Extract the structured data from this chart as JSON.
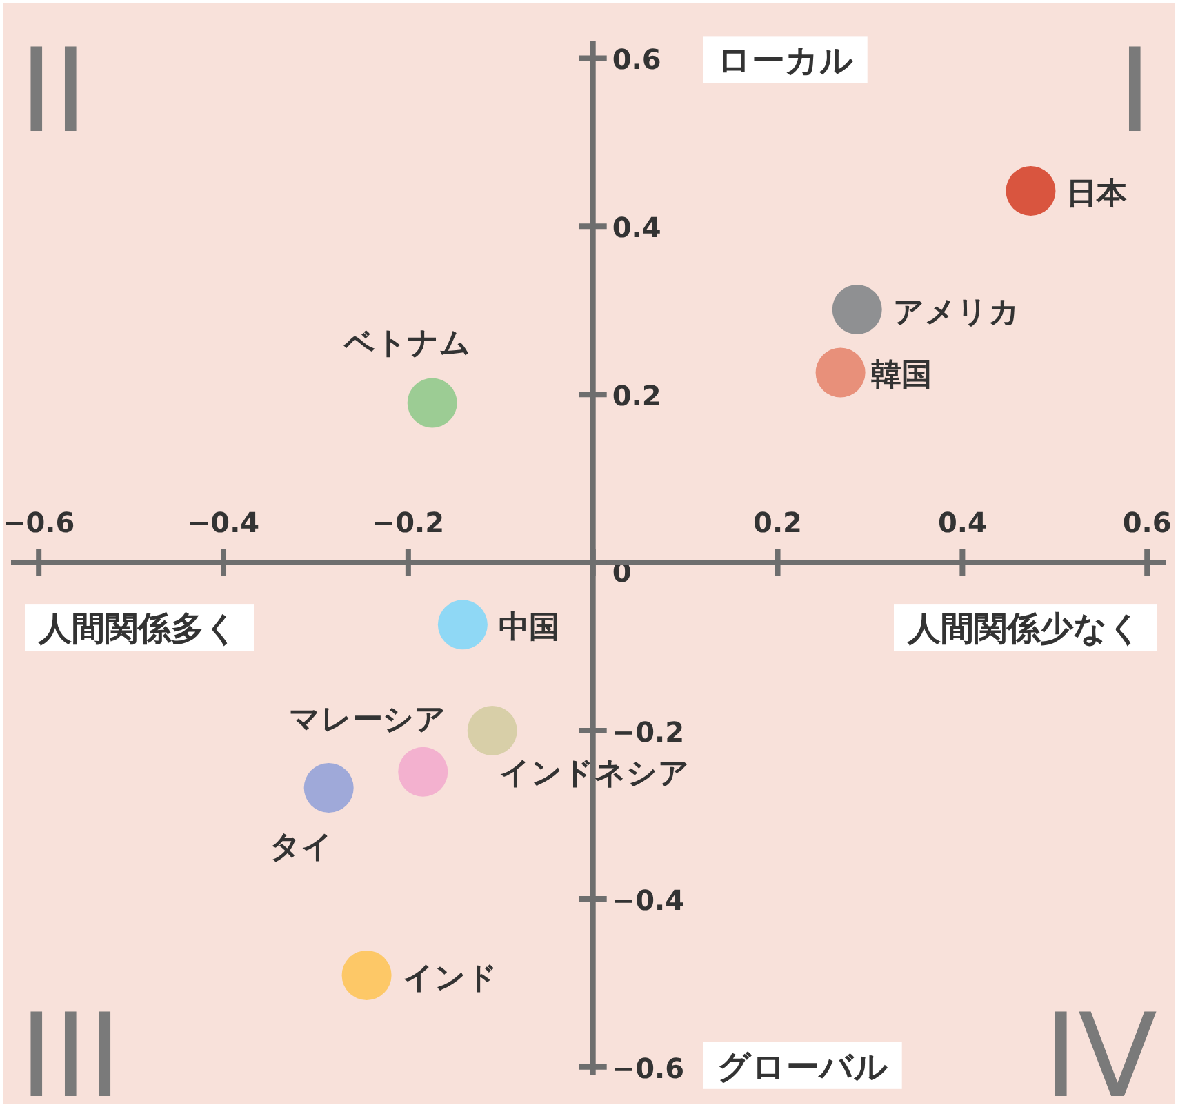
{
  "chart_data": {
    "type": "scatter",
    "xlim": [
      -0.63,
      0.62
    ],
    "ylim": [
      -0.61,
      0.62
    ],
    "xticks": [
      {
        "value": -0.6,
        "label": "−0.6"
      },
      {
        "value": -0.4,
        "label": "−0.4"
      },
      {
        "value": -0.2,
        "label": "−0.2"
      },
      {
        "value": 0,
        "label": null
      },
      0.2,
      0.4,
      0.6
    ],
    "yticks": [
      0.6,
      0.4,
      0.2,
      0,
      {
        "value": -0.2,
        "label": "−0.2"
      },
      {
        "value": -0.4,
        "label": "−0.4"
      },
      {
        "value": -0.6,
        "label": "−0.6"
      }
    ],
    "grid": false,
    "legend": false,
    "marker": "circle",
    "annotations": [
      "I",
      "II",
      "III",
      "IV",
      "ローカル",
      "グローバル",
      "人間関係多く",
      "人間関係少なく"
    ],
    "series": [
      {
        "name": "日本",
        "color": "#d9553f",
        "x": [
          0.474
        ],
        "values": [
          0.442
        ]
      },
      {
        "name": "アメリカ",
        "color": "#8f9092",
        "x": [
          0.286
        ],
        "values": [
          0.301
        ]
      },
      {
        "name": "韓国",
        "color": "#e8907a",
        "x": [
          0.268
        ],
        "values": [
          0.226
        ]
      },
      {
        "name": "ベトナム",
        "color": "#9ccc94",
        "x": [
          -0.174
        ],
        "values": [
          0.19
        ]
      },
      {
        "name": "中国",
        "color": "#8fd8f5",
        "x": [
          -0.141
        ],
        "values": [
          -0.074
        ]
      },
      {
        "name": "インドネシア",
        "color": "#d8cfa8",
        "x": [
          -0.109
        ],
        "values": [
          -0.2
        ]
      },
      {
        "name": "マレーシア",
        "color": "#f3b1cf",
        "x": [
          -0.184
        ],
        "values": [
          -0.249
        ]
      },
      {
        "name": "タイ",
        "color": "#9fa9d9",
        "x": [
          -0.286
        ],
        "values": [
          -0.268
        ]
      },
      {
        "name": "インド",
        "color": "#fdc867",
        "x": [
          -0.245
        ],
        "values": [
          -0.491
        ]
      }
    ]
  }
}
